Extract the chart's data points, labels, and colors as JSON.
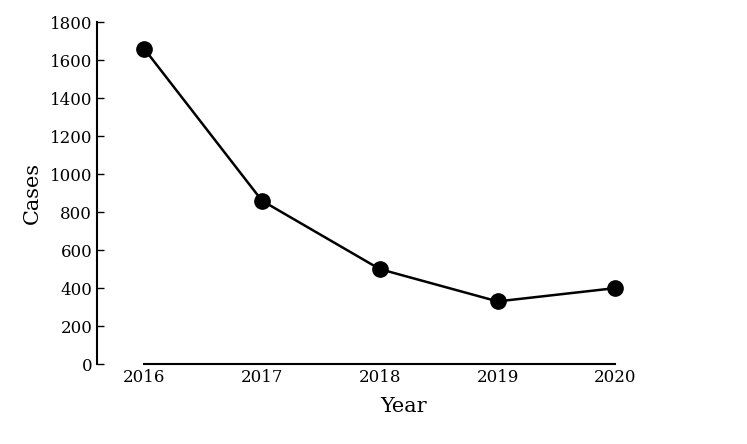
{
  "years": [
    2016,
    2017,
    2018,
    2019,
    2020
  ],
  "cases": [
    1660,
    860,
    500,
    330,
    400
  ],
  "xlabel": "Year",
  "ylabel": "Cases",
  "ylim": [
    0,
    1800
  ],
  "yticks": [
    0,
    200,
    400,
    600,
    800,
    1000,
    1200,
    1400,
    1600,
    1800
  ],
  "xticks": [
    2016,
    2017,
    2018,
    2019,
    2020
  ],
  "line_color": "#000000",
  "marker": "o",
  "marker_size": 11,
  "marker_color": "#000000",
  "line_width": 1.8,
  "background_color": "#ffffff",
  "xlabel_fontsize": 15,
  "ylabel_fontsize": 15,
  "tick_fontsize": 12,
  "xlim_left": 2015.6,
  "xlim_right": 2020.8
}
